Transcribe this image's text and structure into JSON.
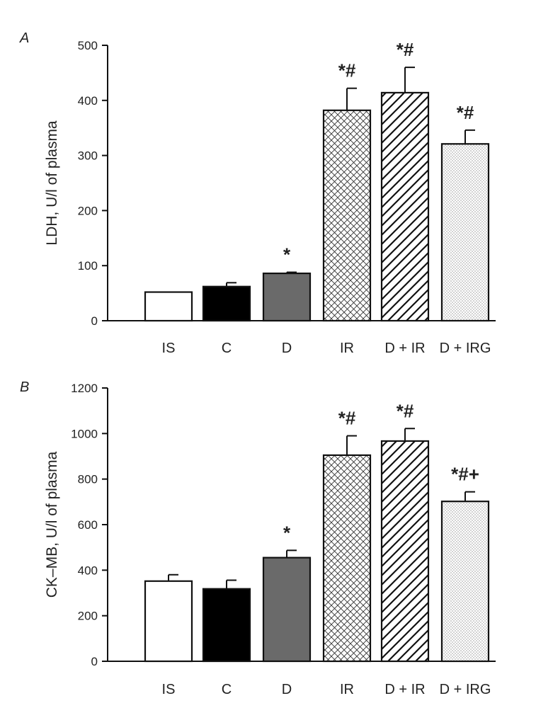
{
  "chart_data": [
    {
      "panel": "A",
      "type": "bar",
      "ylabel": "LDH, U/l of plasma",
      "ylim": [
        0,
        500
      ],
      "yticks": [
        0,
        100,
        200,
        300,
        400,
        500
      ],
      "categories": [
        "IS",
        "C",
        "D",
        "IR",
        "D + IR",
        "D + IRG"
      ],
      "values": [
        52,
        62,
        86,
        382,
        414,
        321
      ],
      "errors": [
        0,
        7,
        2,
        40,
        46,
        25
      ],
      "patterns": [
        "white",
        "black",
        "gray",
        "crosshatch",
        "diagonal",
        "dots"
      ],
      "annotations": [
        "",
        "",
        "*",
        "*#",
        "*#",
        "*#"
      ]
    },
    {
      "panel": "B",
      "type": "bar",
      "ylabel": "CK–MB, U/l of plasma",
      "ylim": [
        0,
        1200
      ],
      "yticks": [
        0,
        200,
        400,
        600,
        800,
        1000,
        1200
      ],
      "categories": [
        "IS",
        "C",
        "D",
        "IR",
        "D + IR",
        "D + IRG"
      ],
      "values": [
        352,
        318,
        455,
        905,
        967,
        702
      ],
      "errors": [
        28,
        38,
        32,
        85,
        55,
        42
      ],
      "patterns": [
        "white",
        "black",
        "gray",
        "crosshatch",
        "diagonal",
        "dots"
      ],
      "annotations": [
        "",
        "",
        "*",
        "*#",
        "*#",
        "*#+"
      ]
    }
  ]
}
